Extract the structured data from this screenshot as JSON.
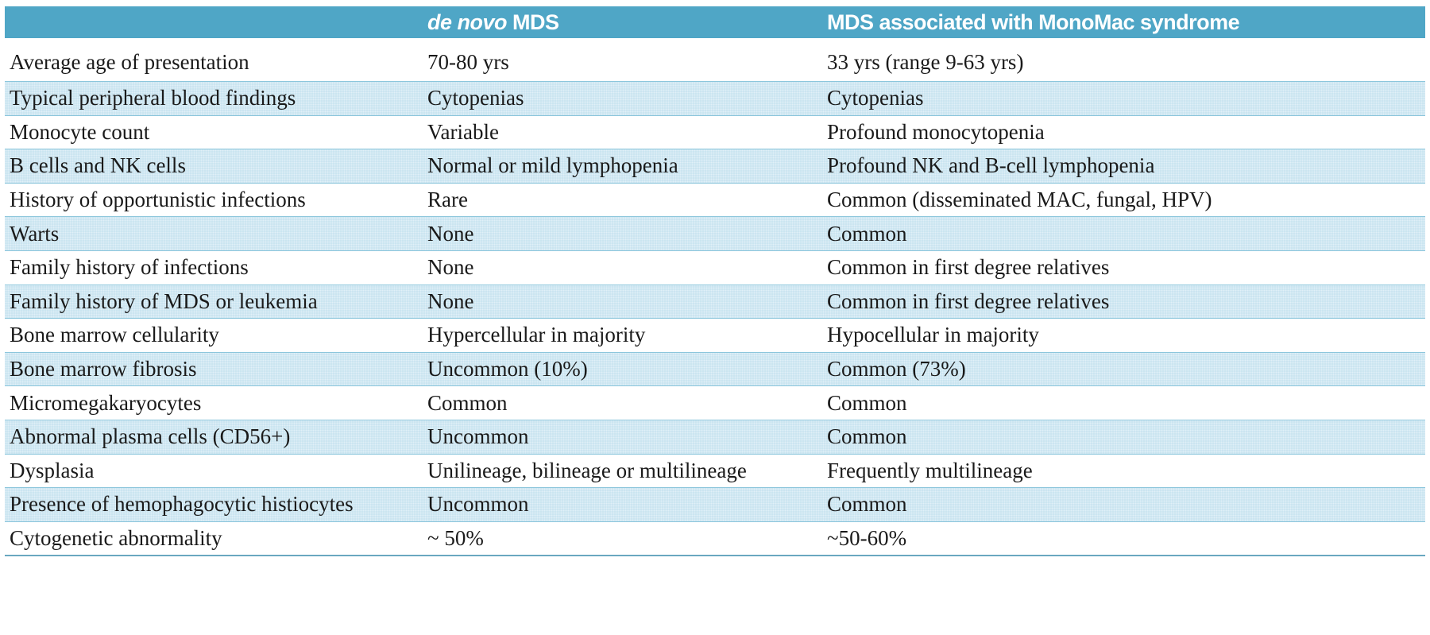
{
  "header": {
    "col1": "",
    "col2_italic": "de novo",
    "col2_rest": " MDS",
    "col3": "MDS associated with MonoMac syndrome"
  },
  "rows": [
    {
      "feature": "Average age of presentation",
      "de_novo": "70-80 yrs",
      "monomac": "33 yrs (range 9-63 yrs)"
    },
    {
      "feature": "Typical peripheral blood findings",
      "de_novo": "Cytopenias",
      "monomac": "Cytopenias"
    },
    {
      "feature": "Monocyte count",
      "de_novo": "Variable",
      "monomac": "Profound monocytopenia"
    },
    {
      "feature": "B cells and NK cells",
      "de_novo": "Normal or mild lymphopenia",
      "monomac": "Profound NK and B-cell lymphopenia"
    },
    {
      "feature": "History of opportunistic infections",
      "de_novo": "Rare",
      "monomac": "Common (disseminated MAC, fungal, HPV)"
    },
    {
      "feature": "Warts",
      "de_novo": "None",
      "monomac": "Common"
    },
    {
      "feature": "Family history of infections",
      "de_novo": "None",
      "monomac": "Common in first degree relatives"
    },
    {
      "feature": "Family history of MDS or leukemia",
      "de_novo": "None",
      "monomac": "Common in first degree relatives"
    },
    {
      "feature": "Bone marrow cellularity",
      "de_novo": "Hypercellular in majority",
      "monomac": "Hypocellular in majority"
    },
    {
      "feature": "Bone marrow fibrosis",
      "de_novo": "Uncommon (10%)",
      "monomac": "Common (73%)"
    },
    {
      "feature": "Micromegakaryocytes",
      "de_novo": "Common",
      "monomac": "Common"
    },
    {
      "feature": "Abnormal plasma cells (CD56+)",
      "de_novo": "Uncommon",
      "monomac": "Common"
    },
    {
      "feature": "Dysplasia",
      "de_novo": "Unilineage, bilineage or multilineage",
      "monomac": "Frequently multilineage"
    },
    {
      "feature": "Presence of hemophagocytic histiocytes",
      "de_novo": "Uncommon",
      "monomac": "Common"
    },
    {
      "feature": "Cytogenetic abnormality",
      "de_novo": " ~ 50%",
      "monomac": "~50-60%"
    }
  ],
  "colors": {
    "header_bg": "#4fa6c6",
    "shaded_row_bg": "#c9e4f0",
    "row_divider": "#8cc6dc"
  }
}
